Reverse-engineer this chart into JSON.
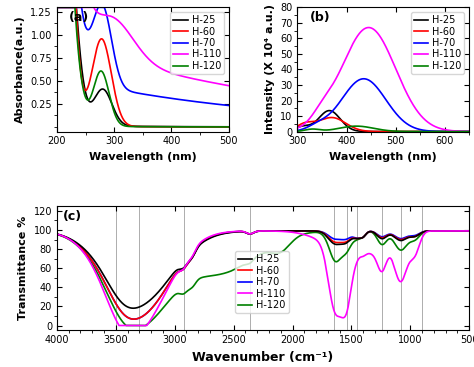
{
  "colors": {
    "H-25": "black",
    "H-60": "red",
    "H-70": "blue",
    "H-110": "magenta",
    "H-120": "green"
  },
  "panel_a": {
    "xlabel": "Wavelength (nm)",
    "ylabel": "Absorbance(a.u.)",
    "xlim": [
      200,
      500
    ],
    "ylim": [
      -0.05,
      1.3
    ],
    "yticks": [
      0.25,
      0.5,
      0.75,
      1.0,
      1.25
    ],
    "label": "(a)"
  },
  "panel_b": {
    "xlabel": "Wavelength (nm)",
    "ylabel": "Intensity (X 10⁴ a.u.)",
    "xlim": [
      300,
      650
    ],
    "ylim": [
      0,
      80
    ],
    "yticks": [
      0,
      10,
      20,
      30,
      40,
      50,
      60,
      70,
      80
    ],
    "label": "(b)"
  },
  "panel_c": {
    "xlabel": "Wavenumber (cm⁻¹)",
    "ylabel": "Transmittance %",
    "xlim": [
      4000,
      500
    ],
    "ylim": [
      -5,
      125
    ],
    "yticks": [
      0,
      20,
      40,
      60,
      80,
      100,
      120
    ],
    "label": "(c)",
    "vlines": [
      3500,
      3300,
      2920,
      2360,
      1650,
      1540,
      1450,
      1240,
      1080,
      900
    ]
  },
  "legend_entries": [
    "H-25",
    "H-60",
    "H-70",
    "H-110",
    "H-120"
  ],
  "background_color": "white",
  "tick_fontsize": 7,
  "label_fontsize": 8,
  "legend_fontsize": 7,
  "linewidth": 1.2
}
